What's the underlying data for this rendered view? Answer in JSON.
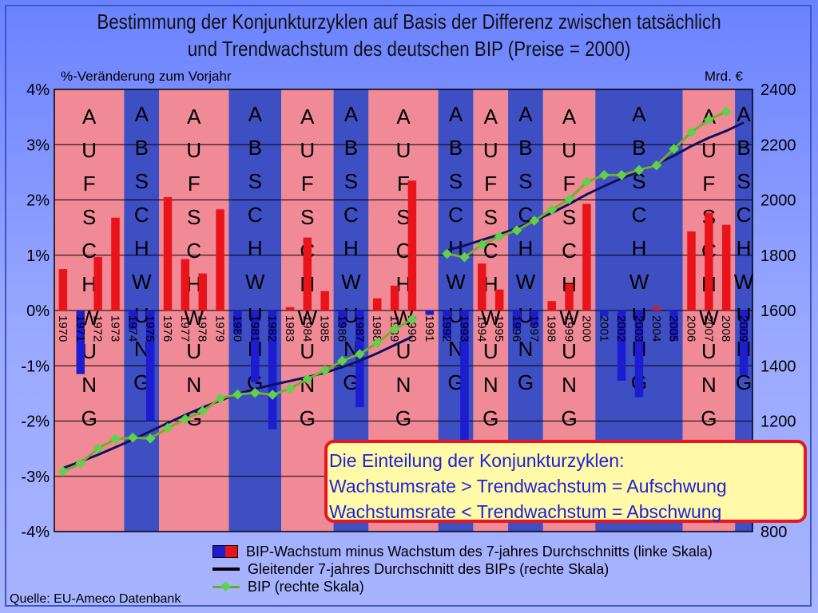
{
  "title_line1": "Bestimmung der Konjunkturzyklen auf Basis der Differenz zwischen tatsächlich",
  "title_line2": "und Trendwachstum des deutschen BIP (Preise = 2000)",
  "source": "Quelle: EU-Ameco Datenbank",
  "info_box": {
    "line1": "Die Einteilung der Konjunkturzyklen:",
    "line2": "Wachstumsrate > Trendwachstum = Aufschwung",
    "line3": "Wachstumsrate < Trendwachstum = Abschwung"
  },
  "legend": {
    "bars": "BIP-Wachstum minus Wachstum des 7-jahres Durchschnitts (linke Skala)",
    "trend": "Gleitender 7-jahres Durchschnitt des BIPs (rechte Skala)",
    "bip": "BIP (rechte Skala)"
  },
  "colors": {
    "upswing_bg": "#f08a96",
    "downswing_bg": "#3e4fc4",
    "bar_positive": "#e8141a",
    "bar_negative": "#1c1cd0",
    "trend_line": "#101060",
    "bip_line": "#74ad2b",
    "bip_marker": "#5fd14a",
    "cycle_letters_up": "#e01818",
    "cycle_letters_down": "#14146a"
  },
  "chart_data": {
    "type": "bar",
    "ylabel": "%-Veränderung zum Vorjahr",
    "y2label": "Mrd. €",
    "ylim": [
      -4,
      4
    ],
    "y_ticks": [
      "-4%",
      "-3%",
      "-2%",
      "-1%",
      "0%",
      "1%",
      "2%",
      "3%",
      "4%"
    ],
    "y2lim": [
      800,
      2400
    ],
    "y2_ticks": [
      "800",
      "1000",
      "1200",
      "1400",
      "1600",
      "1800",
      "2000",
      "2200",
      "2400"
    ],
    "categories": [
      "1970",
      "1971",
      "1972",
      "1973",
      "1974",
      "1975",
      "1976",
      "1977",
      "1978",
      "1979",
      "1980",
      "1981",
      "1982",
      "1983",
      "1984",
      "1985",
      "1986",
      "1987",
      "1988",
      "1989",
      "1990",
      "1991",
      "1992",
      "1993",
      "1994",
      "1995",
      "1996",
      "1997",
      "1998",
      "1999",
      "2000",
      "2001",
      "2002",
      "2003",
      "2004",
      "2005",
      "2006",
      "2007",
      "2008",
      "2009"
    ],
    "series": [
      {
        "name": "BIP-Wachstum minus Wachstum des 7-jahres Durchschnitts (linke Skala)",
        "axis": "left",
        "values": [
          0.75,
          -1.15,
          0.97,
          1.68,
          -0.35,
          -2.0,
          2.05,
          0.93,
          0.67,
          1.83,
          -0.4,
          -1.3,
          -2.15,
          0.06,
          1.32,
          0.35,
          -0.3,
          -1.75,
          0.22,
          0.45,
          2.35,
          -0.08,
          -0.5,
          -2.55,
          0.85,
          0.38,
          -0.35,
          -0.28,
          0.17,
          0.48,
          1.93,
          -0.1,
          -1.27,
          -1.57,
          0.06,
          -0.55,
          1.43,
          1.77,
          1.55,
          -1.17
        ]
      },
      {
        "name": "Gleitender 7-jahres Durchschnitt des BIPs (rechte Skala)",
        "axis": "right",
        "values": [
          1030,
          1053,
          1078,
          1105,
          1133,
          1163,
          1193,
          1222,
          1249,
          1274,
          1298,
          1316,
          1331,
          1345,
          1359,
          1375,
          1395,
          1418,
          1445,
          1475,
          1505,
          null,
          1818,
          1835,
          1855,
          1875,
          1898,
          1925,
          1953,
          1985,
          2020,
          2050,
          2078,
          2103,
          2130,
          2160,
          2195,
          2225,
          2250,
          2280
        ]
      },
      {
        "name": "BIP (rechte Skala)",
        "axis": "right",
        "values": [
          1018,
          1047,
          1100,
          1135,
          1140,
          1137,
          1175,
          1207,
          1236,
          1282,
          1296,
          1302,
          1295,
          1317,
          1352,
          1383,
          1418,
          1442,
          1483,
          1533,
          1568,
          null,
          1805,
          1793,
          1838,
          1868,
          1890,
          1925,
          1965,
          2003,
          2065,
          2090,
          2090,
          2108,
          2125,
          2185,
          2245,
          2290,
          2320,
          null
        ]
      }
    ],
    "cycle_phases": [
      {
        "label": "AUFSCHWUNG",
        "type": "up",
        "from": "1970",
        "to": "1973"
      },
      {
        "label": "ABSCHWUNG",
        "type": "down",
        "from": "1974",
        "to": "1975"
      },
      {
        "label": "AUFSCHWUNG",
        "type": "up",
        "from": "1976",
        "to": "1979"
      },
      {
        "label": "ABSCHWUNG",
        "type": "down",
        "from": "1980",
        "to": "1982"
      },
      {
        "label": "AUFSCHWUNG",
        "type": "up",
        "from": "1983",
        "to": "1985"
      },
      {
        "label": "ABSCHWUNG",
        "type": "down",
        "from": "1986",
        "to": "1987"
      },
      {
        "label": "AUFSCHWUNG",
        "type": "up",
        "from": "1988",
        "to": "1991"
      },
      {
        "label": "ABSCHWUNG",
        "type": "down",
        "from": "1992",
        "to": "1993"
      },
      {
        "label": "AUFSCHWUNG",
        "type": "up",
        "from": "1994",
        "to": "1995"
      },
      {
        "label": "ABSCHWUNG",
        "type": "down",
        "from": "1996",
        "to": "1997"
      },
      {
        "label": "AUFSCHWUNG",
        "type": "up",
        "from": "1998",
        "to": "2000"
      },
      {
        "label": "ABSCHWUNG",
        "type": "down",
        "from": "2001",
        "to": "2005"
      },
      {
        "label": "AUFSCHWUNG",
        "type": "up",
        "from": "2006",
        "to": "2008"
      },
      {
        "label": "ABSCHWUNG",
        "type": "down",
        "from": "2009",
        "to": "2009"
      }
    ],
    "grid": true,
    "legend_position": "bottom"
  }
}
